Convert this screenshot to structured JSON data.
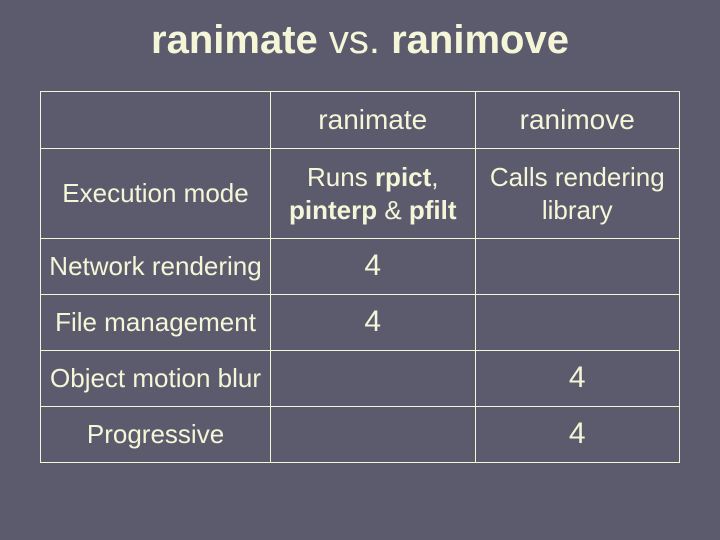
{
  "slide": {
    "title_parts": {
      "a": "ranimate",
      "vs": " vs. ",
      "b": "ranimove"
    },
    "background_color": "#5b5b6d",
    "text_color": "#f5f5d8",
    "border_color": "#f5f5d8",
    "title_fontsize": 40,
    "cell_fontsize": 26
  },
  "table": {
    "type": "table",
    "column_widths": [
      "36%",
      "32%",
      "32%"
    ],
    "headers": [
      "",
      "ranimate",
      "ranimove"
    ],
    "checkmark_glyph": "4",
    "rows": [
      {
        "label": "Execution mode",
        "ranimate_html": {
          "pre": "Runs ",
          "b1": "rpict",
          "mid": ", ",
          "b2": "pinterp",
          "mid2": " & ",
          "b3": "pfilt"
        },
        "ranimove": "Calls rendering library"
      },
      {
        "label": "Network rendering",
        "ranimate_check": true,
        "ranimove_check": false
      },
      {
        "label": "File management",
        "ranimate_check": true,
        "ranimove_check": false
      },
      {
        "label": "Object motion blur",
        "ranimate_check": false,
        "ranimove_check": true
      },
      {
        "label": "Progressive",
        "ranimate_check": false,
        "ranimove_check": true
      }
    ]
  }
}
